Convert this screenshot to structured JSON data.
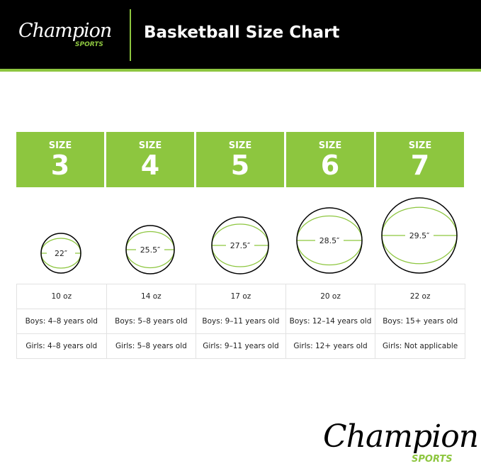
{
  "brand": {
    "name": "Champion",
    "sub": "SPORTS",
    "accent": "#8dc63f"
  },
  "header": {
    "title": "Basketball Size Chart"
  },
  "columns": [
    {
      "size_label": "SIZE",
      "size": "3",
      "circumference": "22″",
      "weight": "10 oz",
      "boys": "Boys: 4–8 years old",
      "girls": "Girls: 4–8 years old"
    },
    {
      "size_label": "SIZE",
      "size": "4",
      "circumference": "25.5″",
      "weight": "14 oz",
      "boys": "Boys: 5–8 years old",
      "girls": "Girls: 5–8 years old"
    },
    {
      "size_label": "SIZE",
      "size": "5",
      "circumference": "27.5″",
      "weight": "17 oz",
      "boys": "Boys: 9–11 years old",
      "girls": "Girls: 9–11 years old"
    },
    {
      "size_label": "SIZE",
      "size": "6",
      "circumference": "28.5″",
      "weight": "20 oz",
      "boys": "Boys: 12–14 years old",
      "girls": "Girls: 12+ years old"
    },
    {
      "size_label": "SIZE",
      "size": "7",
      "circumference": "29.5″",
      "weight": "22 oz",
      "boys": "Boys: 15+ years old",
      "girls": "Girls: Not applicable"
    }
  ]
}
